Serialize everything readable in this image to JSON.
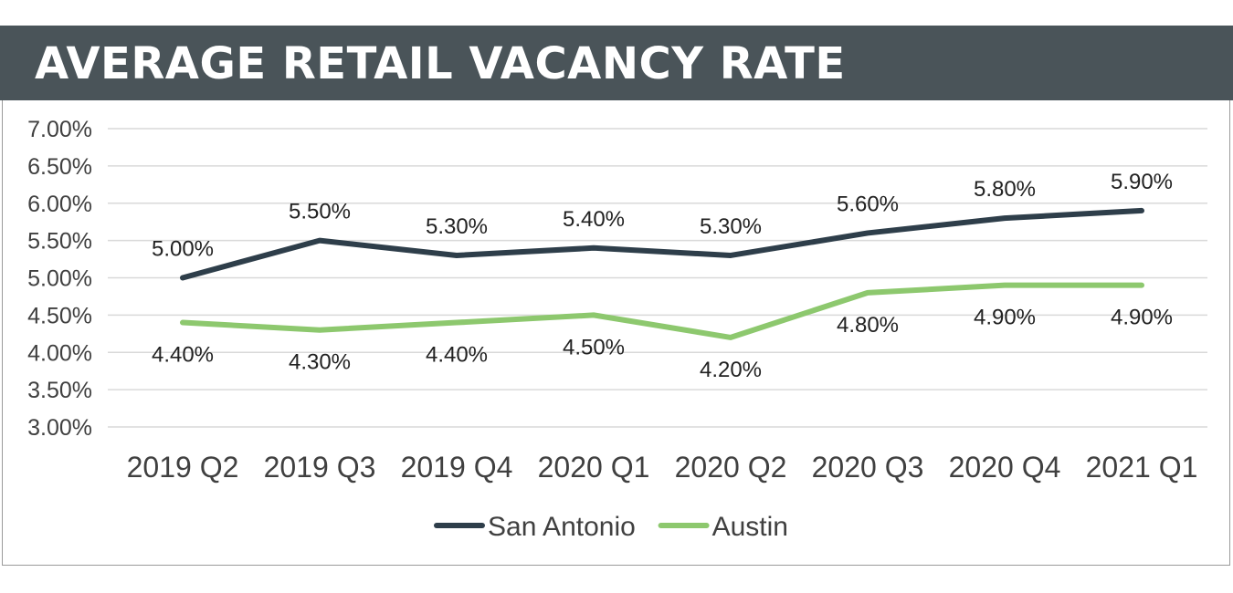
{
  "header": {
    "title": "AVERAGE RETAIL VACANCY RATE"
  },
  "chart_data": {
    "type": "line",
    "title": "AVERAGE RETAIL VACANCY RATE",
    "xlabel": "",
    "ylabel": "",
    "categories": [
      "2019 Q2",
      "2019 Q3",
      "2019 Q4",
      "2020 Q1",
      "2020 Q2",
      "2020 Q3",
      "2020 Q4",
      "2021 Q1"
    ],
    "series": [
      {
        "name": "San Antonio",
        "color": "#2e3e4a",
        "values": [
          5.0,
          5.5,
          5.3,
          5.4,
          5.3,
          5.6,
          5.8,
          5.9
        ],
        "labels": [
          "5.00%",
          "5.50%",
          "5.30%",
          "5.40%",
          "5.30%",
          "5.60%",
          "5.80%",
          "5.90%"
        ],
        "label_position": "above"
      },
      {
        "name": "Austin",
        "color": "#8dc86e",
        "values": [
          4.4,
          4.3,
          4.4,
          4.5,
          4.2,
          4.8,
          4.9,
          4.9
        ],
        "labels": [
          "4.40%",
          "4.30%",
          "4.40%",
          "4.50%",
          "4.20%",
          "4.80%",
          "4.90%",
          "4.90%"
        ],
        "label_position": "below"
      }
    ],
    "ylim": [
      3.0,
      7.0
    ],
    "yticks": [
      3.0,
      3.5,
      4.0,
      4.5,
      5.0,
      5.5,
      6.0,
      6.5,
      7.0
    ],
    "ytick_labels": [
      "3.00%",
      "3.50%",
      "4.00%",
      "4.50%",
      "5.00%",
      "5.50%",
      "6.00%",
      "6.50%",
      "7.00%"
    ],
    "grid": true,
    "legend_position": "bottom-center"
  }
}
